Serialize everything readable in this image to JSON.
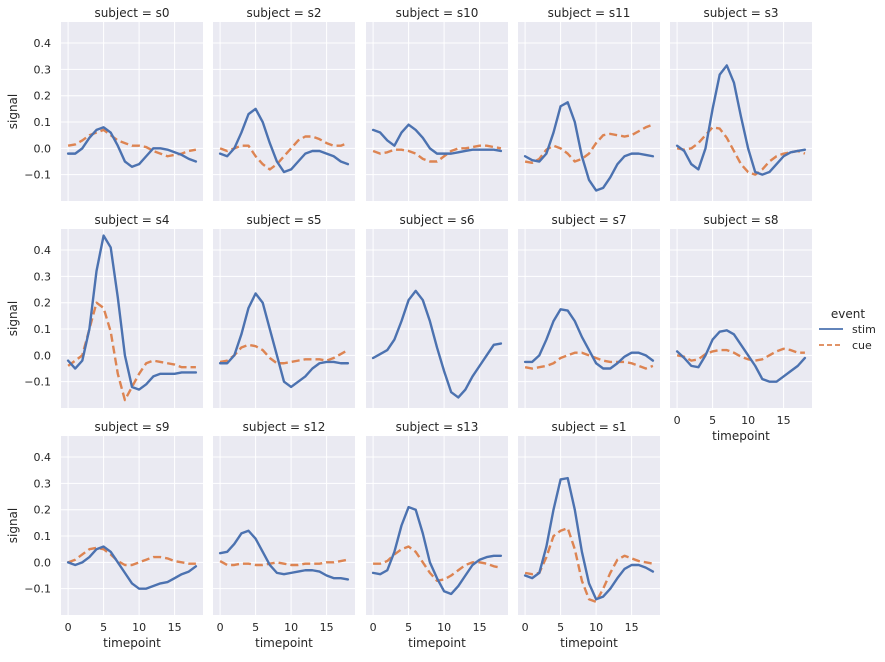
{
  "chart_data": {
    "type": "line",
    "x_label": "timepoint",
    "y_label": "signal",
    "ylim": [
      -0.2,
      0.48
    ],
    "xlim": [
      -1,
      19
    ],
    "y_ticks": [
      -0.1,
      0.0,
      0.1,
      0.2,
      0.3,
      0.4
    ],
    "y_tick_labels": [
      "−0.1",
      "0.0",
      "0.1",
      "0.2",
      "0.3",
      "0.4"
    ],
    "x_ticks": [
      0,
      5,
      10,
      15
    ],
    "x_tick_labels": [
      "0",
      "5",
      "10",
      "15"
    ],
    "grid": true,
    "legend": {
      "title": "event",
      "placement": "right",
      "entries": [
        {
          "name": "stim",
          "color": "#4c72b0",
          "style": "solid"
        },
        {
          "name": "cue",
          "color": "#dd8452",
          "style": "dashed"
        }
      ]
    },
    "x": [
      0,
      1,
      2,
      3,
      4,
      5,
      6,
      7,
      8,
      9,
      10,
      11,
      12,
      13,
      14,
      15,
      16,
      17,
      18
    ],
    "panels": [
      {
        "title": "subject = s0",
        "stim": [
          -0.02,
          -0.02,
          0.0,
          0.04,
          0.07,
          0.08,
          0.06,
          0.01,
          -0.05,
          -0.07,
          -0.06,
          -0.03,
          0.0,
          0.0,
          -0.005,
          -0.015,
          -0.025,
          -0.04,
          -0.05
        ],
        "cue": [
          0.01,
          0.015,
          0.03,
          0.05,
          0.06,
          0.07,
          0.05,
          0.03,
          0.02,
          0.01,
          0.01,
          0.005,
          -0.01,
          -0.02,
          -0.03,
          -0.025,
          -0.02,
          -0.01,
          -0.005
        ]
      },
      {
        "title": "subject = s2",
        "stim": [
          -0.02,
          -0.03,
          0.0,
          0.06,
          0.13,
          0.15,
          0.1,
          0.02,
          -0.05,
          -0.09,
          -0.08,
          -0.05,
          -0.02,
          -0.01,
          -0.01,
          -0.02,
          -0.03,
          -0.05,
          -0.06
        ],
        "cue": [
          0.0,
          -0.01,
          0.0,
          0.01,
          0.01,
          -0.03,
          -0.06,
          -0.08,
          -0.06,
          -0.03,
          0.0,
          0.03,
          0.045,
          0.045,
          0.035,
          0.02,
          0.01,
          0.01,
          0.02
        ]
      },
      {
        "title": "subject = s10",
        "stim": [
          0.07,
          0.06,
          0.03,
          0.01,
          0.06,
          0.09,
          0.07,
          0.04,
          0.0,
          -0.02,
          -0.02,
          -0.02,
          -0.015,
          -0.01,
          -0.005,
          -0.005,
          -0.005,
          -0.005,
          -0.01
        ],
        "cue": [
          -0.01,
          -0.02,
          -0.015,
          -0.005,
          -0.005,
          -0.01,
          -0.02,
          -0.04,
          -0.05,
          -0.05,
          -0.03,
          -0.01,
          0.0,
          0.0,
          0.005,
          0.01,
          0.01,
          0.005,
          0.0
        ]
      },
      {
        "title": "subject = s11",
        "stim": [
          -0.03,
          -0.045,
          -0.05,
          -0.02,
          0.06,
          0.16,
          0.175,
          0.1,
          -0.03,
          -0.12,
          -0.16,
          -0.15,
          -0.11,
          -0.06,
          -0.03,
          -0.02,
          -0.02,
          -0.025,
          -0.03
        ],
        "cue": [
          -0.05,
          -0.055,
          -0.04,
          -0.005,
          0.01,
          0.0,
          -0.02,
          -0.05,
          -0.04,
          -0.02,
          0.02,
          0.05,
          0.055,
          0.05,
          0.045,
          0.05,
          0.065,
          0.08,
          0.09
        ]
      },
      {
        "title": "subject = s3",
        "stim": [
          0.01,
          -0.01,
          -0.06,
          -0.08,
          0.0,
          0.15,
          0.28,
          0.315,
          0.25,
          0.12,
          0.0,
          -0.09,
          -0.1,
          -0.09,
          -0.06,
          -0.03,
          -0.015,
          -0.01,
          -0.005
        ],
        "cue": [
          0.0,
          -0.005,
          0.0,
          0.02,
          0.05,
          0.08,
          0.075,
          0.04,
          -0.01,
          -0.06,
          -0.09,
          -0.1,
          -0.08,
          -0.05,
          -0.03,
          -0.02,
          -0.015,
          -0.01,
          -0.02
        ]
      },
      {
        "title": "subject = s4",
        "stim": [
          -0.02,
          -0.05,
          -0.02,
          0.1,
          0.32,
          0.455,
          0.41,
          0.22,
          0.0,
          -0.12,
          -0.13,
          -0.11,
          -0.08,
          -0.07,
          -0.07,
          -0.07,
          -0.065,
          -0.065,
          -0.065
        ],
        "cue": [
          -0.04,
          -0.02,
          0.0,
          0.1,
          0.2,
          0.18,
          0.09,
          -0.07,
          -0.17,
          -0.12,
          -0.07,
          -0.03,
          -0.02,
          -0.025,
          -0.03,
          -0.035,
          -0.045,
          -0.045,
          -0.045
        ]
      },
      {
        "title": "subject = s5",
        "stim": [
          -0.03,
          -0.03,
          0.0,
          0.08,
          0.18,
          0.235,
          0.2,
          0.1,
          0.0,
          -0.1,
          -0.12,
          -0.1,
          -0.08,
          -0.05,
          -0.03,
          -0.025,
          -0.025,
          -0.03,
          -0.03
        ],
        "cue": [
          -0.025,
          -0.02,
          0.0,
          0.03,
          0.04,
          0.035,
          0.02,
          -0.01,
          -0.03,
          -0.03,
          -0.025,
          -0.02,
          -0.015,
          -0.015,
          -0.015,
          -0.02,
          -0.01,
          0.005,
          0.02
        ]
      },
      {
        "title": "subject = s6",
        "stim": [
          -0.01,
          0.005,
          0.02,
          0.06,
          0.13,
          0.21,
          0.245,
          0.21,
          0.13,
          0.03,
          -0.06,
          -0.14,
          -0.16,
          -0.13,
          -0.08,
          -0.04,
          0.0,
          0.04,
          0.045
        ]
      },
      {
        "title": "subject = s7",
        "stim": [
          -0.025,
          -0.025,
          0.0,
          0.06,
          0.13,
          0.175,
          0.17,
          0.13,
          0.07,
          0.02,
          -0.03,
          -0.05,
          -0.05,
          -0.03,
          -0.005,
          0.01,
          0.01,
          0.0,
          -0.02
        ],
        "cue": [
          -0.045,
          -0.05,
          -0.045,
          -0.04,
          -0.03,
          -0.01,
          0.0,
          0.01,
          0.01,
          0.0,
          -0.01,
          -0.02,
          -0.025,
          -0.025,
          -0.025,
          -0.03,
          -0.04,
          -0.05,
          -0.04
        ]
      },
      {
        "title": "subject = s8",
        "stim": [
          0.015,
          -0.01,
          -0.04,
          -0.045,
          0.0,
          0.06,
          0.09,
          0.095,
          0.08,
          0.04,
          0.0,
          -0.04,
          -0.09,
          -0.1,
          -0.1,
          -0.08,
          -0.06,
          -0.04,
          -0.01
        ],
        "cue": [
          0.0,
          -0.005,
          -0.02,
          -0.015,
          0.005,
          0.015,
          0.02,
          0.02,
          0.01,
          -0.005,
          -0.015,
          -0.02,
          -0.015,
          0.0,
          0.015,
          0.025,
          0.02,
          0.01,
          0.01
        ]
      },
      {
        "title": "subject = s9",
        "stim": [
          0.0,
          -0.01,
          0.0,
          0.02,
          0.05,
          0.06,
          0.04,
          0.0,
          -0.04,
          -0.08,
          -0.1,
          -0.1,
          -0.09,
          -0.08,
          -0.075,
          -0.06,
          -0.045,
          -0.035,
          -0.015
        ],
        "cue": [
          0.0,
          0.01,
          0.03,
          0.05,
          0.055,
          0.05,
          0.03,
          0.005,
          -0.01,
          -0.01,
          0.0,
          0.01,
          0.02,
          0.02,
          0.015,
          0.005,
          0.0,
          -0.005,
          -0.005
        ]
      },
      {
        "title": "subject = s12",
        "stim": [
          0.035,
          0.04,
          0.07,
          0.11,
          0.12,
          0.09,
          0.04,
          -0.01,
          -0.04,
          -0.045,
          -0.04,
          -0.035,
          -0.03,
          -0.03,
          -0.035,
          -0.05,
          -0.06,
          -0.06,
          -0.065
        ],
        "cue": [
          0.005,
          -0.01,
          -0.01,
          -0.005,
          -0.005,
          -0.01,
          -0.01,
          -0.005,
          0.0,
          -0.005,
          -0.01,
          -0.01,
          -0.005,
          -0.005,
          -0.005,
          0.0,
          0.0,
          0.005,
          0.01
        ]
      },
      {
        "title": "subject = s13",
        "stim": [
          -0.04,
          -0.045,
          -0.03,
          0.04,
          0.14,
          0.21,
          0.2,
          0.11,
          0.0,
          -0.06,
          -0.11,
          -0.12,
          -0.09,
          -0.05,
          -0.01,
          0.01,
          0.02,
          0.025,
          0.025
        ],
        "cue": [
          -0.005,
          -0.005,
          0.005,
          0.03,
          0.05,
          0.06,
          0.04,
          0.0,
          -0.04,
          -0.07,
          -0.065,
          -0.05,
          -0.03,
          -0.01,
          0.0,
          0.0,
          -0.005,
          -0.015,
          -0.02
        ]
      },
      {
        "title": "subject = s1",
        "stim": [
          -0.05,
          -0.06,
          -0.04,
          0.06,
          0.2,
          0.315,
          0.32,
          0.2,
          0.04,
          -0.08,
          -0.14,
          -0.13,
          -0.1,
          -0.06,
          -0.025,
          -0.01,
          -0.01,
          -0.02,
          -0.035
        ],
        "cue": [
          -0.04,
          -0.045,
          -0.04,
          0.02,
          0.1,
          0.12,
          0.13,
          0.05,
          -0.07,
          -0.14,
          -0.15,
          -0.1,
          -0.04,
          0.01,
          0.025,
          0.015,
          0.005,
          0.0,
          -0.005
        ]
      }
    ]
  }
}
